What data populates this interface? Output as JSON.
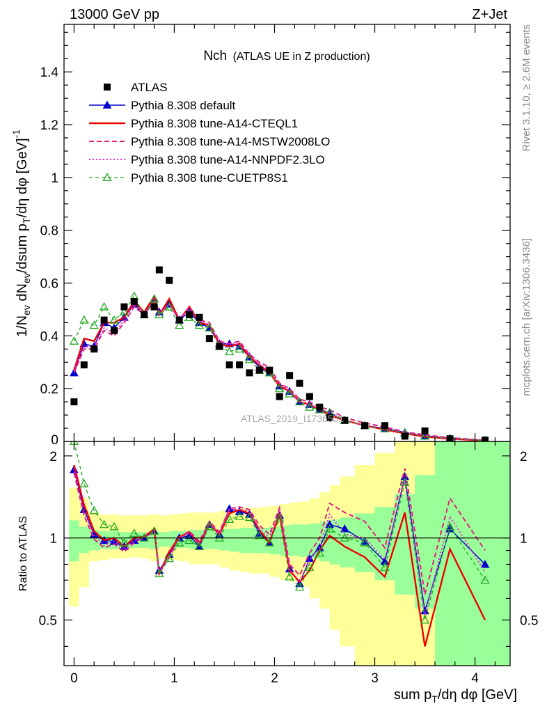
{
  "header": {
    "energy_label": "13000 GeV pp",
    "process_label": "Z+Jet"
  },
  "side_labels": {
    "rivet": "Rivet 3.1.10, ≥ 2.6M events",
    "mcplots": "mcplots.cern.ch [arXiv:1306.3436]"
  },
  "watermark": "ATLAS_2019_I1736531",
  "chart_data": [
    {
      "type": "line",
      "title": "Nch",
      "subtitle": "(ATLAS UE in Z production)",
      "ylabel": "1/N_ev dN_ev/dsum p_T/dη dφ [GeV]^-1",
      "xlabel": "sum p_T/dη dφ [GeV]",
      "xlim": [
        -0.1,
        4.35
      ],
      "ylim": [
        0,
        1.58
      ],
      "x_ticks": [
        0,
        1,
        2,
        3,
        4
      ],
      "y_ticks": [
        0.2,
        0.4,
        0.6,
        0.8,
        1,
        1.2,
        1.4
      ],
      "y_tick_labels": [
        "0.2",
        "0.4",
        "0.6",
        "0.8",
        "1",
        "1.2",
        "1.4"
      ],
      "x": [
        0.0,
        0.1,
        0.2,
        0.3,
        0.4,
        0.5,
        0.6,
        0.7,
        0.8,
        0.85,
        0.95,
        1.05,
        1.15,
        1.25,
        1.35,
        1.45,
        1.55,
        1.65,
        1.75,
        1.85,
        1.95,
        2.05,
        2.15,
        2.25,
        2.35,
        2.45,
        2.55,
        2.7,
        2.9,
        3.1,
        3.3,
        3.5,
        3.75,
        4.1
      ],
      "legend_placement": "top-left",
      "series": [
        {
          "name": "ATLAS",
          "style": "marker",
          "color": "#000000",
          "values": [
            0.15,
            0.29,
            0.35,
            0.46,
            0.42,
            0.51,
            0.53,
            0.48,
            0.51,
            0.65,
            0.61,
            0.46,
            0.48,
            0.47,
            0.39,
            0.36,
            0.29,
            0.29,
            0.26,
            0.27,
            0.27,
            0.17,
            0.25,
            0.22,
            0.17,
            0.13,
            0.09,
            0.08,
            0.06,
            0.06,
            0.02,
            0.04,
            0.01,
            0.005
          ]
        },
        {
          "name": "Pythia 8.308 default",
          "style": "line-marker",
          "color": "#0000cc",
          "values": [
            0.26,
            0.37,
            0.36,
            0.45,
            0.43,
            0.47,
            0.52,
            0.48,
            0.54,
            0.49,
            0.52,
            0.46,
            0.49,
            0.45,
            0.43,
            0.37,
            0.37,
            0.36,
            0.32,
            0.28,
            0.26,
            0.21,
            0.19,
            0.15,
            0.14,
            0.12,
            0.11,
            0.08,
            0.06,
            0.05,
            0.034,
            0.022,
            0.012,
            0.004
          ]
        },
        {
          "name": "Pythia 8.308 tune-A14-CTEQL1",
          "style": "line",
          "color": "#ee0000",
          "values": [
            0.27,
            0.39,
            0.38,
            0.45,
            0.45,
            0.47,
            0.53,
            0.49,
            0.55,
            0.48,
            0.54,
            0.46,
            0.51,
            0.45,
            0.44,
            0.37,
            0.36,
            0.37,
            0.32,
            0.29,
            0.26,
            0.21,
            0.19,
            0.15,
            0.14,
            0.12,
            0.1,
            0.08,
            0.06,
            0.045,
            0.03,
            0.018,
            0.01,
            0.003
          ]
        },
        {
          "name": "Pythia 8.308 tune-A14-MSTW2008LO",
          "style": "dashed",
          "color": "#e0207a",
          "values": [
            0.26,
            0.35,
            0.35,
            0.42,
            0.4,
            0.45,
            0.51,
            0.48,
            0.53,
            0.48,
            0.52,
            0.46,
            0.51,
            0.46,
            0.45,
            0.38,
            0.37,
            0.38,
            0.33,
            0.3,
            0.28,
            0.22,
            0.2,
            0.16,
            0.15,
            0.13,
            0.12,
            0.09,
            0.07,
            0.055,
            0.036,
            0.025,
            0.014,
            0.005
          ]
        },
        {
          "name": "Pythia 8.308 tune-A14-NNPDF2.3LO",
          "style": "dotted",
          "color": "#ee22dd",
          "values": [
            0.27,
            0.36,
            0.36,
            0.43,
            0.41,
            0.46,
            0.52,
            0.48,
            0.54,
            0.49,
            0.52,
            0.46,
            0.5,
            0.46,
            0.44,
            0.37,
            0.37,
            0.37,
            0.33,
            0.29,
            0.27,
            0.22,
            0.19,
            0.15,
            0.14,
            0.12,
            0.11,
            0.08,
            0.06,
            0.05,
            0.033,
            0.021,
            0.012,
            0.004
          ]
        },
        {
          "name": "Pythia 8.308 tune-CUETP8S1",
          "style": "dashed-open-triangle",
          "color": "#22aa22",
          "values": [
            0.38,
            0.46,
            0.44,
            0.51,
            0.46,
            0.49,
            0.55,
            0.48,
            0.54,
            0.48,
            0.51,
            0.44,
            0.47,
            0.44,
            0.43,
            0.36,
            0.34,
            0.35,
            0.31,
            0.27,
            0.26,
            0.2,
            0.18,
            0.15,
            0.13,
            0.12,
            0.11,
            0.08,
            0.06,
            0.048,
            0.032,
            0.02,
            0.011,
            0.0035
          ]
        }
      ]
    },
    {
      "type": "line",
      "ylabel": "Ratio to ATLAS",
      "xlim": [
        -0.1,
        4.35
      ],
      "ylim": [
        0.34,
        2.26
      ],
      "y_ticks": [
        0.5,
        1,
        2
      ],
      "y_tick_labels": [
        "0.5",
        "1",
        "2"
      ],
      "reference_line": 1,
      "x": [
        0.0,
        0.1,
        0.2,
        0.3,
        0.4,
        0.5,
        0.6,
        0.7,
        0.8,
        0.85,
        0.95,
        1.05,
        1.15,
        1.25,
        1.35,
        1.45,
        1.55,
        1.65,
        1.75,
        1.85,
        1.95,
        2.05,
        2.15,
        2.25,
        2.35,
        2.45,
        2.55,
        2.7,
        2.9,
        3.1,
        3.3,
        3.5,
        3.75,
        4.1
      ],
      "bands": {
        "edges": [
          -0.05,
          0.05,
          0.15,
          0.25,
          0.35,
          0.45,
          0.55,
          0.65,
          0.75,
          0.85,
          0.95,
          1.05,
          1.15,
          1.25,
          1.35,
          1.45,
          1.55,
          1.65,
          1.75,
          1.85,
          1.95,
          2.05,
          2.15,
          2.25,
          2.35,
          2.45,
          2.55,
          2.65,
          2.8,
          3.0,
          3.2,
          3.4,
          3.6,
          3.9,
          4.35
        ],
        "stat_lo": [
          0.82,
          0.88,
          0.9,
          0.91,
          0.91,
          0.92,
          0.92,
          0.92,
          0.91,
          0.93,
          0.92,
          0.92,
          0.91,
          0.91,
          0.91,
          0.9,
          0.89,
          0.88,
          0.88,
          0.88,
          0.87,
          0.86,
          0.86,
          0.85,
          0.84,
          0.82,
          0.8,
          0.78,
          0.75,
          0.7,
          0.62,
          0.55,
          0.34,
          0.34
        ],
        "stat_hi": [
          1.16,
          1.1,
          1.07,
          1.06,
          1.06,
          1.05,
          1.05,
          1.05,
          1.06,
          1.05,
          1.06,
          1.06,
          1.07,
          1.07,
          1.07,
          1.08,
          1.08,
          1.09,
          1.09,
          1.09,
          1.1,
          1.11,
          1.12,
          1.12,
          1.13,
          1.15,
          1.17,
          1.19,
          1.23,
          1.3,
          1.45,
          1.7,
          2.26,
          2.26
        ],
        "tot_lo": [
          0.56,
          0.66,
          0.82,
          0.83,
          0.84,
          0.84,
          0.85,
          0.84,
          0.82,
          0.84,
          0.83,
          0.82,
          0.8,
          0.8,
          0.8,
          0.78,
          0.76,
          0.75,
          0.74,
          0.74,
          0.72,
          0.7,
          0.69,
          0.66,
          0.6,
          0.55,
          0.46,
          0.4,
          0.34,
          0.34,
          0.34,
          0.34,
          0.34,
          0.34
        ],
        "tot_hi": [
          1.53,
          1.4,
          1.24,
          1.22,
          1.22,
          1.21,
          1.21,
          1.21,
          1.22,
          1.21,
          1.22,
          1.23,
          1.24,
          1.24,
          1.24,
          1.26,
          1.28,
          1.29,
          1.29,
          1.3,
          1.31,
          1.33,
          1.35,
          1.36,
          1.4,
          1.47,
          1.56,
          1.68,
          1.85,
          2.05,
          2.26,
          2.26,
          2.26,
          2.26
        ],
        "stat_color": "#99ff99",
        "total_color": "#ffff99"
      },
      "series": [
        {
          "name": "Pythia 8.308 default",
          "color": "#0000cc",
          "values": [
            1.78,
            1.27,
            1.03,
            0.98,
            0.97,
            0.93,
            0.98,
            1.0,
            1.06,
            0.76,
            0.87,
            1.0,
            1.02,
            0.93,
            1.12,
            1.03,
            1.28,
            1.25,
            1.22,
            1.04,
            0.96,
            1.21,
            0.77,
            0.68,
            0.84,
            0.92,
            1.12,
            1.08,
            0.97,
            0.82,
            1.68,
            0.54,
            1.08,
            0.8
          ]
        },
        {
          "name": "Pythia 8.308 tune-A14-CTEQL1",
          "color": "#ee0000",
          "values": [
            1.85,
            1.32,
            1.06,
            0.98,
            1.0,
            0.93,
            1.0,
            1.01,
            1.08,
            0.74,
            0.89,
            1.01,
            1.05,
            0.95,
            1.13,
            1.03,
            1.23,
            1.27,
            1.23,
            1.07,
            0.96,
            1.23,
            0.76,
            0.69,
            0.76,
            0.9,
            1.02,
            0.93,
            0.85,
            0.72,
            1.24,
            0.4,
            0.91,
            0.5
          ]
        },
        {
          "name": "Pythia 8.308 tune-A14-MSTW2008LO",
          "color": "#e0207a",
          "values": [
            1.73,
            1.21,
            0.99,
            0.92,
            0.95,
            0.89,
            0.96,
            1.01,
            1.04,
            0.74,
            0.85,
            1.0,
            1.06,
            0.97,
            1.15,
            1.05,
            1.28,
            1.3,
            1.27,
            1.11,
            1.03,
            1.29,
            0.8,
            0.73,
            0.88,
            1.0,
            1.34,
            1.24,
            1.15,
            0.92,
            1.8,
            0.62,
            1.4,
            0.9
          ]
        },
        {
          "name": "Pythia 8.308 tune-A14-NNPDF2.3LO",
          "color": "#ee22dd",
          "values": [
            1.8,
            1.24,
            1.02,
            0.94,
            0.97,
            0.91,
            0.98,
            1.0,
            1.06,
            0.75,
            0.86,
            1.0,
            1.04,
            0.96,
            1.13,
            1.04,
            1.28,
            1.27,
            1.26,
            1.07,
            1.0,
            1.27,
            0.77,
            0.69,
            0.83,
            0.93,
            1.22,
            1.03,
            1.0,
            0.83,
            1.65,
            0.52,
            1.2,
            0.75
          ]
        },
        {
          "name": "Pythia 8.308 tune-CUETP8S1",
          "color": "#22aa22",
          "values": [
            2.26,
            1.58,
            1.26,
            1.12,
            1.1,
            0.96,
            1.04,
            1.0,
            1.06,
            0.74,
            0.84,
            0.96,
            0.98,
            0.93,
            1.1,
            1.0,
            1.17,
            1.2,
            1.19,
            1.02,
            0.96,
            1.18,
            0.72,
            0.66,
            0.78,
            0.88,
            1.08,
            1.0,
            0.96,
            0.78,
            1.6,
            0.5,
            1.1,
            0.7
          ]
        }
      ]
    }
  ]
}
